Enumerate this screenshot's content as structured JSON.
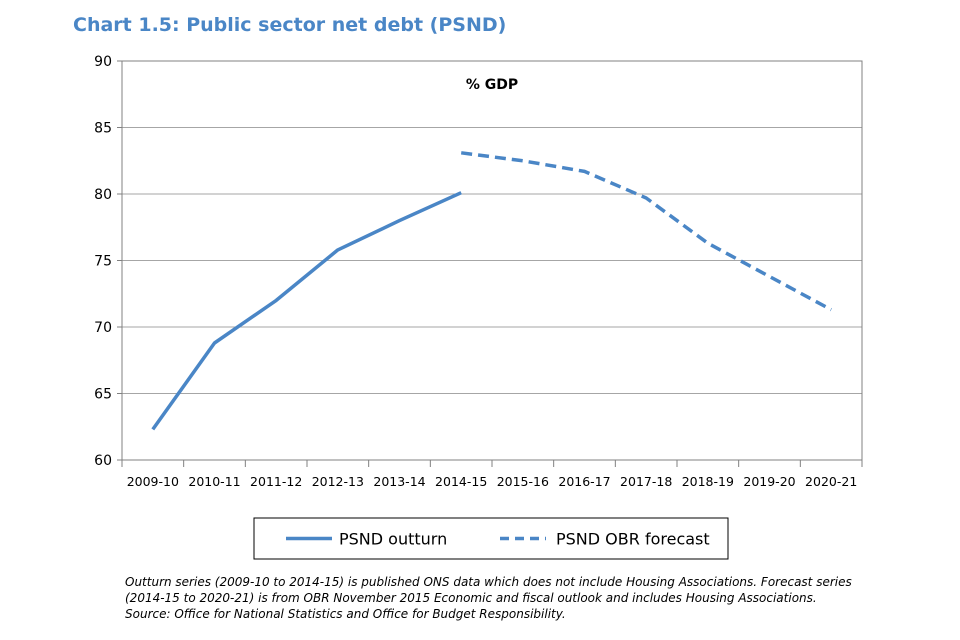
{
  "title": "Chart 1.5: Public sector net debt (PSND)",
  "chart_data": {
    "type": "line",
    "title": "Chart 1.5: Public sector net debt (PSND)",
    "unit_label": "% GDP",
    "categories": [
      "2009-10",
      "2010-11",
      "2011-12",
      "2012-13",
      "2013-14",
      "2014-15",
      "2015-16",
      "2016-17",
      "2017-18",
      "2018-19",
      "2019-20",
      "2020-21"
    ],
    "ylim": [
      60,
      90
    ],
    "yticks": [
      60,
      65,
      70,
      75,
      80,
      85,
      90
    ],
    "grid": true,
    "legend_position": "bottom",
    "series": [
      {
        "name": "PSND outturn",
        "style": "solid",
        "color": "#4a86c6",
        "values": [
          62.3,
          68.8,
          72.0,
          75.8,
          78.0,
          80.1,
          null,
          null,
          null,
          null,
          null,
          null
        ]
      },
      {
        "name": "PSND OBR forecast",
        "style": "dashed",
        "color": "#4a86c6",
        "values": [
          null,
          null,
          null,
          null,
          null,
          83.1,
          82.5,
          81.7,
          79.7,
          76.3,
          73.8,
          71.3
        ]
      }
    ]
  },
  "notes": [
    "Outturn series (2009-10 to 2014-15) is published ONS data which does not include Housing Associations. Forecast series",
    "(2014-15 to 2020-21) is from OBR November 2015 Economic and fiscal outlook and includes Housing Associations.",
    "Source:  Office for National Statistics and Office for Budget Responsibility."
  ]
}
